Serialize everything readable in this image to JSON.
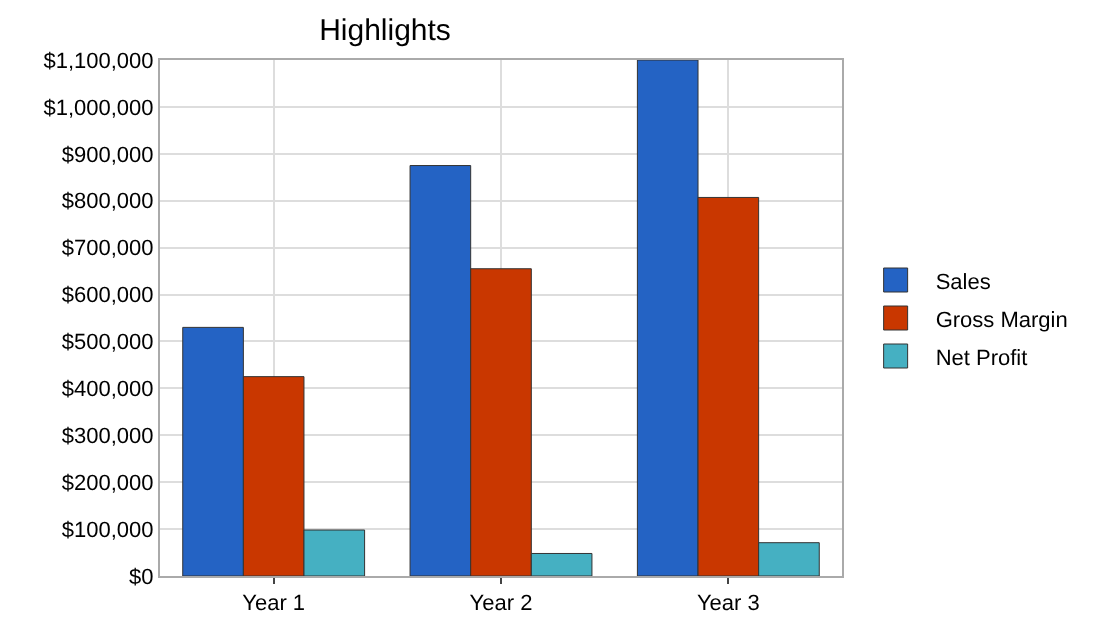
{
  "chart_data": {
    "type": "bar",
    "title": "Highlights",
    "categories": [
      "Year 1",
      "Year 2",
      "Year 3"
    ],
    "series": [
      {
        "name": "Sales",
        "color": "#2463c4",
        "values": [
          530000,
          875000,
          1100000
        ]
      },
      {
        "name": "Gross Margin",
        "color": "#c93700",
        "values": [
          425000,
          655000,
          807000
        ]
      },
      {
        "name": "Net Profit",
        "color": "#45b0c2",
        "values": [
          98000,
          48000,
          71000
        ]
      }
    ],
    "ylim": [
      0,
      1100000
    ],
    "yticks": [
      {
        "value": 0,
        "label": "$0"
      },
      {
        "value": 100000,
        "label": "$100,000"
      },
      {
        "value": 200000,
        "label": "$200,000"
      },
      {
        "value": 300000,
        "label": "$300,000"
      },
      {
        "value": 400000,
        "label": "$400,000"
      },
      {
        "value": 500000,
        "label": "$500,000"
      },
      {
        "value": 600000,
        "label": "$600,000"
      },
      {
        "value": 700000,
        "label": "$700,000"
      },
      {
        "value": 800000,
        "label": "$800,000"
      },
      {
        "value": 900000,
        "label": "$900,000"
      },
      {
        "value": 1000000,
        "label": "$1,000,000"
      },
      {
        "value": 1100000,
        "label": "$1,100,000"
      }
    ],
    "grid": true,
    "legend": "right"
  }
}
